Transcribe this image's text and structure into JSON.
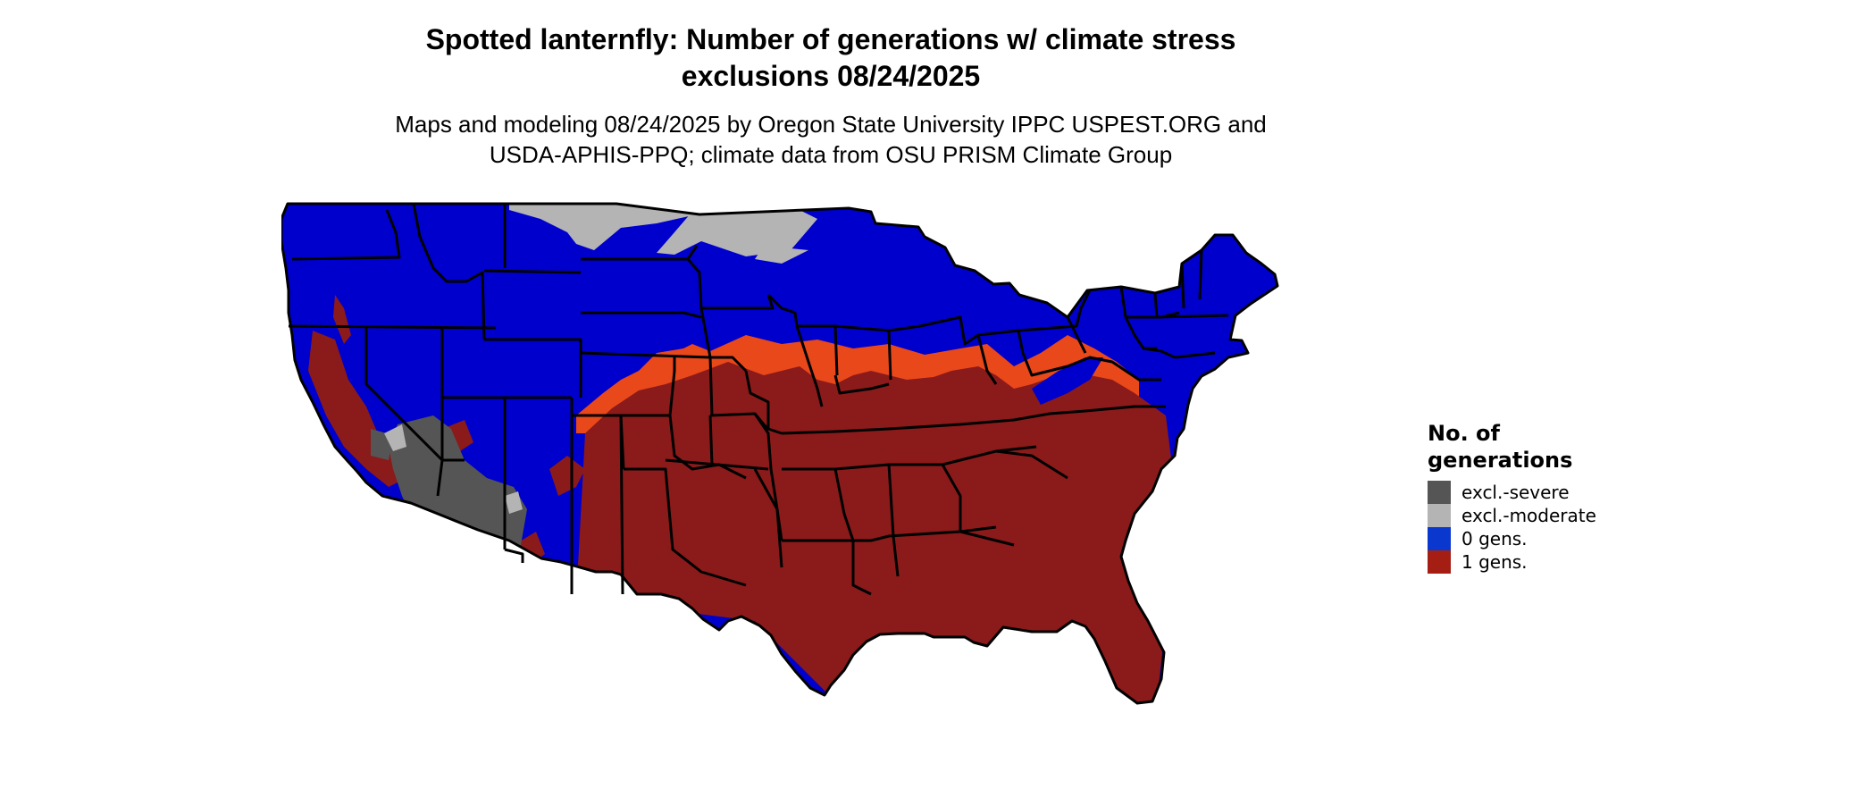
{
  "title": "Spotted lanternfly: Number of generations w/ climate stress\nexclusions 08/24/2025",
  "subtitle": "Maps and modeling 08/24/2025 by Oregon State University IPPC USPEST.ORG and\nUSDA-APHIS-PPQ; climate data from OSU PRISM Climate Group",
  "map": {
    "region": "Contiguous United States",
    "boundaries": "state",
    "colors": {
      "excl_severe": "#555555",
      "excl_moderate": "#b4b4b4",
      "gens_0": "#0000cd",
      "gens_1": "#8b1a1a",
      "transition": "#e8481a",
      "border": "#000000",
      "water": "#ffffff"
    }
  },
  "legend": {
    "title": "No. of\ngenerations",
    "items": [
      {
        "label": "excl.-severe",
        "color": "#555555"
      },
      {
        "label": "excl.-moderate",
        "color": "#b4b4b4"
      },
      {
        "label": "0 gens.",
        "color": "#0a37cd"
      },
      {
        "label": "1 gens.",
        "color": "#a51e14"
      }
    ]
  }
}
